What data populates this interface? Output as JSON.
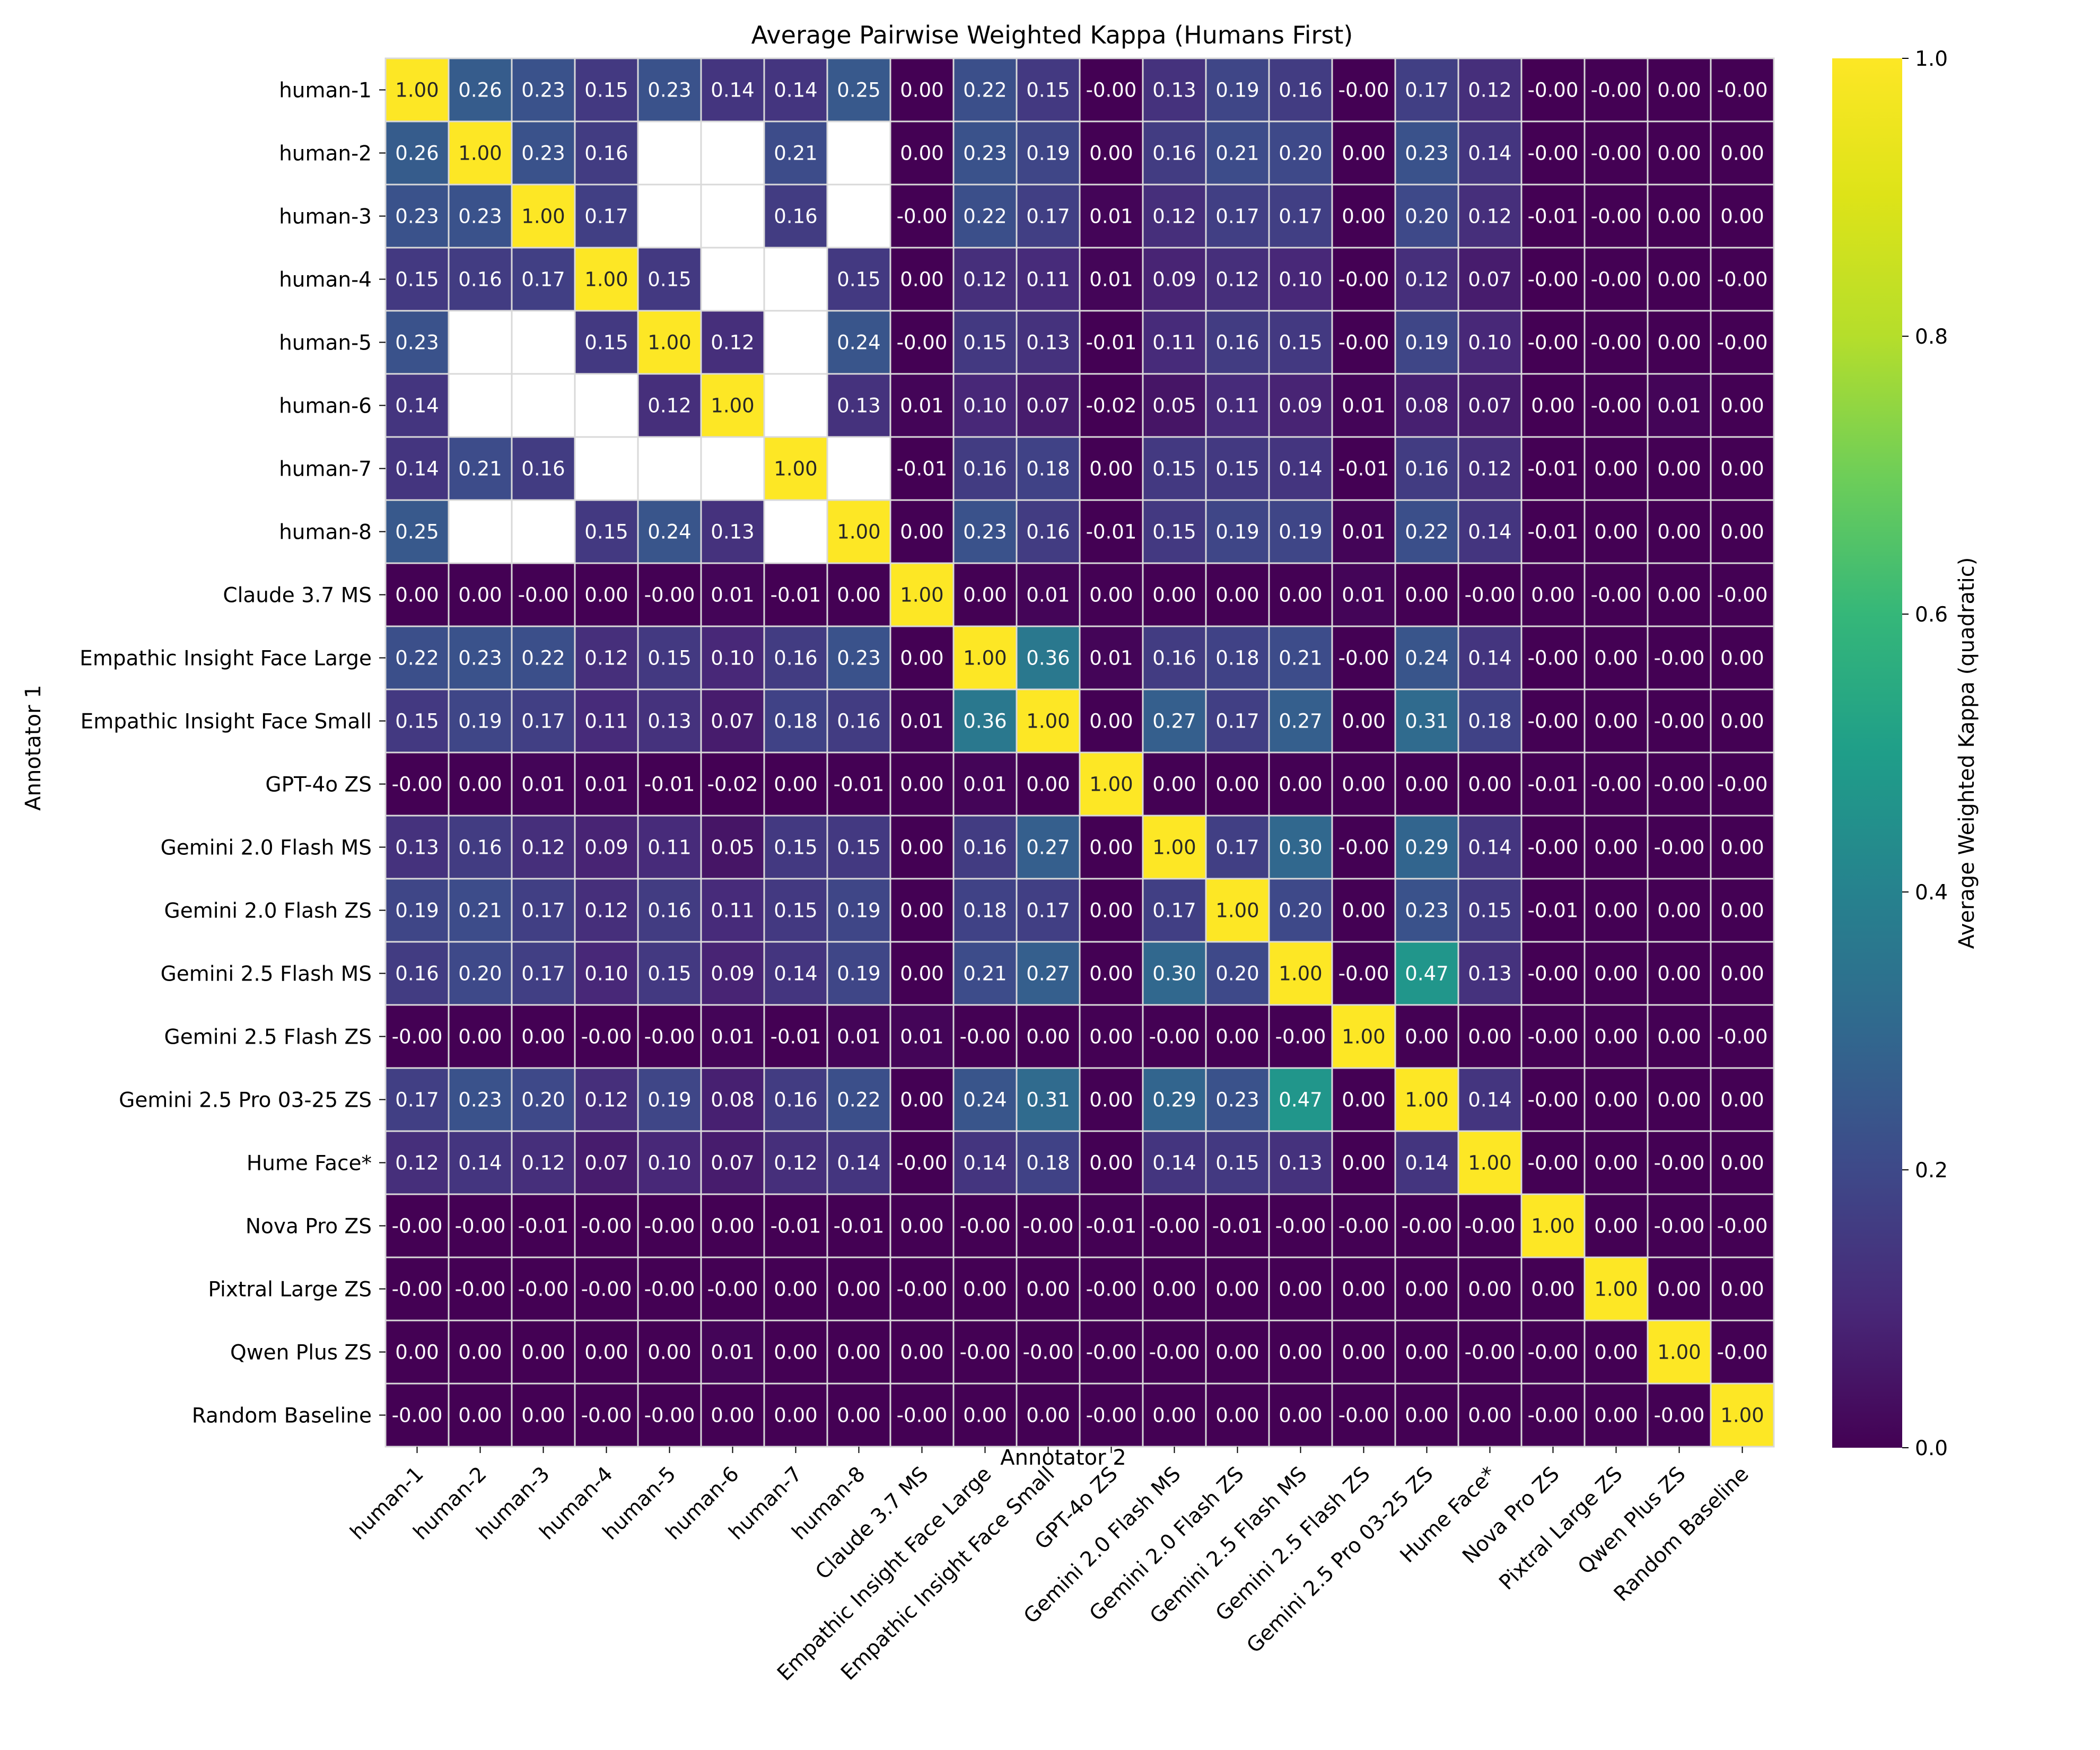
{
  "chart_data": {
    "type": "heatmap",
    "title": "Average Pairwise Weighted Kappa (Humans First)",
    "xlabel": "Annotator 2",
    "ylabel": "Annotator 1",
    "colorbar_label": "Average Weighted Kappa (quadratic)",
    "colormap": "viridis",
    "vmin": 0.0,
    "vmax": 1.0,
    "colorbar_ticks": [
      "0.0",
      "0.2",
      "0.4",
      "0.6",
      "0.8",
      "1.0"
    ],
    "labels": [
      "human-1",
      "human-2",
      "human-3",
      "human-4",
      "human-5",
      "human-6",
      "human-7",
      "human-8",
      "Claude 3.7 MS",
      "Empathic Insight Face Large",
      "Empathic Insight Face Small",
      "GPT-4o ZS",
      "Gemini 2.0 Flash MS",
      "Gemini 2.0 Flash ZS",
      "Gemini 2.5 Flash MS",
      "Gemini 2.5 Flash ZS",
      "Gemini 2.5 Pro 03-25 ZS",
      "Hume Face*",
      "Nova Pro ZS",
      "Pixtral Large ZS",
      "Qwen Plus ZS",
      "Random Baseline"
    ],
    "values": [
      [
        "1.00",
        "0.26",
        "0.23",
        "0.15",
        "0.23",
        "0.14",
        "0.14",
        "0.25",
        "0.00",
        "0.22",
        "0.15",
        "-0.00",
        "0.13",
        "0.19",
        "0.16",
        "-0.00",
        "0.17",
        "0.12",
        "-0.00",
        "-0.00",
        "0.00",
        "-0.00"
      ],
      [
        "0.26",
        "1.00",
        "0.23",
        "0.16",
        null,
        null,
        "0.21",
        null,
        "0.00",
        "0.23",
        "0.19",
        "0.00",
        "0.16",
        "0.21",
        "0.20",
        "0.00",
        "0.23",
        "0.14",
        "-0.00",
        "-0.00",
        "0.00",
        "0.00"
      ],
      [
        "0.23",
        "0.23",
        "1.00",
        "0.17",
        null,
        null,
        "0.16",
        null,
        "-0.00",
        "0.22",
        "0.17",
        "0.01",
        "0.12",
        "0.17",
        "0.17",
        "0.00",
        "0.20",
        "0.12",
        "-0.01",
        "-0.00",
        "0.00",
        "0.00"
      ],
      [
        "0.15",
        "0.16",
        "0.17",
        "1.00",
        "0.15",
        null,
        null,
        "0.15",
        "0.00",
        "0.12",
        "0.11",
        "0.01",
        "0.09",
        "0.12",
        "0.10",
        "-0.00",
        "0.12",
        "0.07",
        "-0.00",
        "-0.00",
        "0.00",
        "-0.00"
      ],
      [
        "0.23",
        null,
        null,
        "0.15",
        "1.00",
        "0.12",
        null,
        "0.24",
        "-0.00",
        "0.15",
        "0.13",
        "-0.01",
        "0.11",
        "0.16",
        "0.15",
        "-0.00",
        "0.19",
        "0.10",
        "-0.00",
        "-0.00",
        "0.00",
        "-0.00"
      ],
      [
        "0.14",
        null,
        null,
        null,
        "0.12",
        "1.00",
        null,
        "0.13",
        "0.01",
        "0.10",
        "0.07",
        "-0.02",
        "0.05",
        "0.11",
        "0.09",
        "0.01",
        "0.08",
        "0.07",
        "0.00",
        "-0.00",
        "0.01",
        "0.00"
      ],
      [
        "0.14",
        "0.21",
        "0.16",
        null,
        null,
        null,
        "1.00",
        null,
        "-0.01",
        "0.16",
        "0.18",
        "0.00",
        "0.15",
        "0.15",
        "0.14",
        "-0.01",
        "0.16",
        "0.12",
        "-0.01",
        "0.00",
        "0.00",
        "0.00"
      ],
      [
        "0.25",
        null,
        null,
        "0.15",
        "0.24",
        "0.13",
        null,
        "1.00",
        "0.00",
        "0.23",
        "0.16",
        "-0.01",
        "0.15",
        "0.19",
        "0.19",
        "0.01",
        "0.22",
        "0.14",
        "-0.01",
        "0.00",
        "0.00",
        "0.00"
      ],
      [
        "0.00",
        "0.00",
        "-0.00",
        "0.00",
        "-0.00",
        "0.01",
        "-0.01",
        "0.00",
        "1.00",
        "0.00",
        "0.01",
        "0.00",
        "0.00",
        "0.00",
        "0.00",
        "0.01",
        "0.00",
        "-0.00",
        "0.00",
        "-0.00",
        "0.00",
        "-0.00"
      ],
      [
        "0.22",
        "0.23",
        "0.22",
        "0.12",
        "0.15",
        "0.10",
        "0.16",
        "0.23",
        "0.00",
        "1.00",
        "0.36",
        "0.01",
        "0.16",
        "0.18",
        "0.21",
        "-0.00",
        "0.24",
        "0.14",
        "-0.00",
        "0.00",
        "-0.00",
        "0.00"
      ],
      [
        "0.15",
        "0.19",
        "0.17",
        "0.11",
        "0.13",
        "0.07",
        "0.18",
        "0.16",
        "0.01",
        "0.36",
        "1.00",
        "0.00",
        "0.27",
        "0.17",
        "0.27",
        "0.00",
        "0.31",
        "0.18",
        "-0.00",
        "0.00",
        "-0.00",
        "0.00"
      ],
      [
        "-0.00",
        "0.00",
        "0.01",
        "0.01",
        "-0.01",
        "-0.02",
        "0.00",
        "-0.01",
        "0.00",
        "0.01",
        "0.00",
        "1.00",
        "0.00",
        "0.00",
        "0.00",
        "0.00",
        "0.00",
        "0.00",
        "-0.01",
        "-0.00",
        "-0.00",
        "-0.00"
      ],
      [
        "0.13",
        "0.16",
        "0.12",
        "0.09",
        "0.11",
        "0.05",
        "0.15",
        "0.15",
        "0.00",
        "0.16",
        "0.27",
        "0.00",
        "1.00",
        "0.17",
        "0.30",
        "-0.00",
        "0.29",
        "0.14",
        "-0.00",
        "0.00",
        "-0.00",
        "0.00"
      ],
      [
        "0.19",
        "0.21",
        "0.17",
        "0.12",
        "0.16",
        "0.11",
        "0.15",
        "0.19",
        "0.00",
        "0.18",
        "0.17",
        "0.00",
        "0.17",
        "1.00",
        "0.20",
        "0.00",
        "0.23",
        "0.15",
        "-0.01",
        "0.00",
        "0.00",
        "0.00"
      ],
      [
        "0.16",
        "0.20",
        "0.17",
        "0.10",
        "0.15",
        "0.09",
        "0.14",
        "0.19",
        "0.00",
        "0.21",
        "0.27",
        "0.00",
        "0.30",
        "0.20",
        "1.00",
        "-0.00",
        "0.47",
        "0.13",
        "-0.00",
        "0.00",
        "0.00",
        "0.00"
      ],
      [
        "-0.00",
        "0.00",
        "0.00",
        "-0.00",
        "-0.00",
        "0.01",
        "-0.01",
        "0.01",
        "0.01",
        "-0.00",
        "0.00",
        "0.00",
        "-0.00",
        "0.00",
        "-0.00",
        "1.00",
        "0.00",
        "0.00",
        "-0.00",
        "0.00",
        "0.00",
        "-0.00"
      ],
      [
        "0.17",
        "0.23",
        "0.20",
        "0.12",
        "0.19",
        "0.08",
        "0.16",
        "0.22",
        "0.00",
        "0.24",
        "0.31",
        "0.00",
        "0.29",
        "0.23",
        "0.47",
        "0.00",
        "1.00",
        "0.14",
        "-0.00",
        "0.00",
        "0.00",
        "0.00"
      ],
      [
        "0.12",
        "0.14",
        "0.12",
        "0.07",
        "0.10",
        "0.07",
        "0.12",
        "0.14",
        "-0.00",
        "0.14",
        "0.18",
        "0.00",
        "0.14",
        "0.15",
        "0.13",
        "0.00",
        "0.14",
        "1.00",
        "-0.00",
        "0.00",
        "-0.00",
        "0.00"
      ],
      [
        "-0.00",
        "-0.00",
        "-0.01",
        "-0.00",
        "-0.00",
        "0.00",
        "-0.01",
        "-0.01",
        "0.00",
        "-0.00",
        "-0.00",
        "-0.01",
        "-0.00",
        "-0.01",
        "-0.00",
        "-0.00",
        "-0.00",
        "-0.00",
        "1.00",
        "0.00",
        "-0.00",
        "-0.00"
      ],
      [
        "-0.00",
        "-0.00",
        "-0.00",
        "-0.00",
        "-0.00",
        "-0.00",
        "0.00",
        "0.00",
        "-0.00",
        "0.00",
        "0.00",
        "-0.00",
        "0.00",
        "0.00",
        "0.00",
        "0.00",
        "0.00",
        "0.00",
        "0.00",
        "1.00",
        "0.00",
        "0.00"
      ],
      [
        "0.00",
        "0.00",
        "0.00",
        "0.00",
        "0.00",
        "0.01",
        "0.00",
        "0.00",
        "0.00",
        "-0.00",
        "-0.00",
        "-0.00",
        "-0.00",
        "0.00",
        "0.00",
        "0.00",
        "0.00",
        "-0.00",
        "-0.00",
        "0.00",
        "1.00",
        "-0.00"
      ],
      [
        "-0.00",
        "0.00",
        "0.00",
        "-0.00",
        "-0.00",
        "0.00",
        "0.00",
        "0.00",
        "-0.00",
        "0.00",
        "0.00",
        "-0.00",
        "0.00",
        "0.00",
        "0.00",
        "-0.00",
        "0.00",
        "0.00",
        "-0.00",
        "0.00",
        "-0.00",
        "1.00"
      ]
    ]
  }
}
